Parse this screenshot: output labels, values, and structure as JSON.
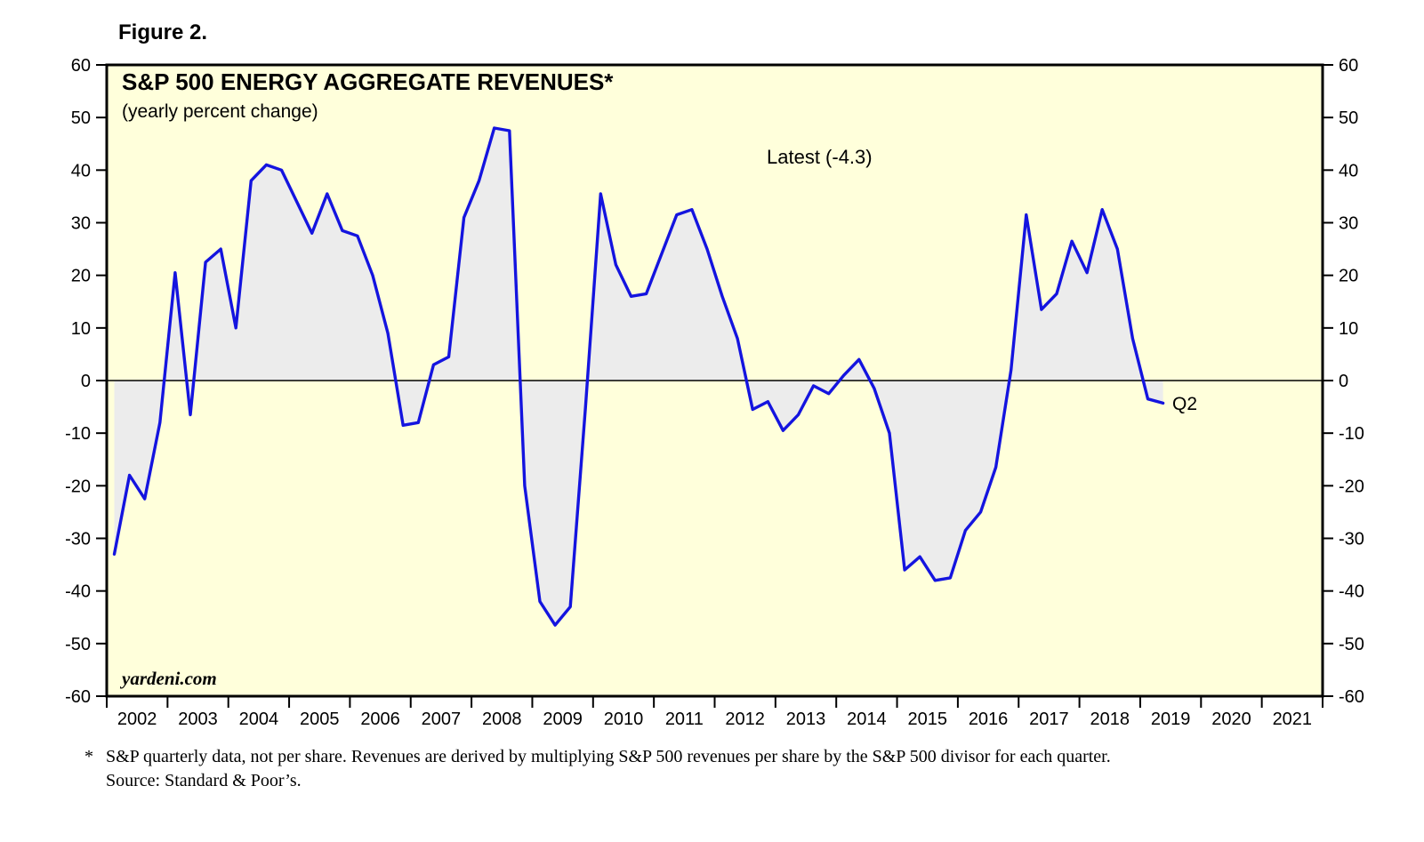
{
  "figure_label": "Figure 2.",
  "chart_data": {
    "type": "line",
    "title": "S&P 500 ENERGY AGGREGATE REVENUES*",
    "subtitle": "(yearly percent change)",
    "annotation": "Latest (-4.3)",
    "end_label": "Q2",
    "watermark": "yardeni.com",
    "latest_value": -4.3,
    "ylim": [
      -60,
      60
    ],
    "ytick_step": 10,
    "x_start_year": 2002,
    "x_end_year": 2022,
    "xtick_years": [
      2002,
      2003,
      2004,
      2005,
      2006,
      2007,
      2008,
      2009,
      2010,
      2011,
      2012,
      2013,
      2014,
      2015,
      2016,
      2017,
      2018,
      2019,
      2020,
      2021
    ],
    "grid": "off",
    "legend": "none",
    "colors": {
      "line": "#1414DF",
      "area_fill": "#ECECEC",
      "plot_bg": "#FFFFDB",
      "frame": "#000000"
    },
    "series": [
      {
        "name": "S&P 500 Energy aggregate revenues (yearly percent change)",
        "frequency": "quarterly",
        "start_quarter": "2002-Q1",
        "end_quarter": "2019-Q2",
        "values": [
          -33,
          -18,
          -22.5,
          -8,
          20.5,
          -6.5,
          22.5,
          25,
          10,
          38,
          41,
          40,
          34,
          28,
          35.5,
          28.5,
          27.5,
          20,
          9,
          -8.5,
          -8,
          3,
          4.5,
          31,
          38,
          48,
          47.5,
          -20,
          -42,
          -46.5,
          -43,
          -5,
          35.5,
          22,
          16,
          16.5,
          24,
          31.5,
          32.5,
          25,
          16,
          8,
          -5.5,
          -4,
          -9.5,
          -6.5,
          -1,
          -2.5,
          1,
          4,
          -1.5,
          -10,
          -36,
          -33.5,
          -38,
          -37.5,
          -28.5,
          -25,
          -16.5,
          2,
          31.5,
          13.5,
          16.5,
          26.5,
          20.5,
          32.5,
          25,
          8,
          -3.5,
          -4.3
        ]
      }
    ]
  },
  "footnote": {
    "marker": "*",
    "line1": "S&P quarterly data, not per share. Revenues are derived by multiplying S&P 500 revenues per share by the S&P 500 divisor for each quarter.",
    "line2": "Source: Standard & Poor’s."
  }
}
